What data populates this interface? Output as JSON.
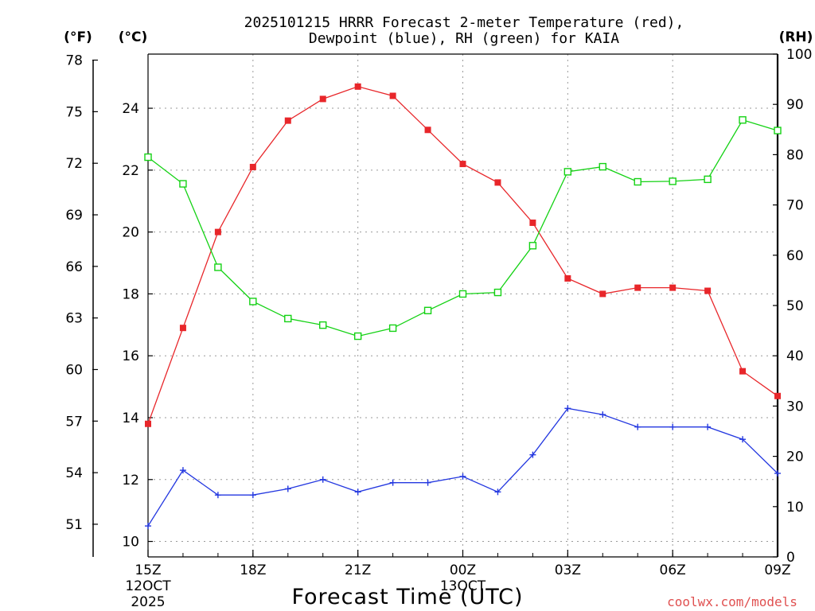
{
  "chart_data": {
    "type": "line",
    "title_line1": "2025101215 HRRR Forecast 2-meter Temperature (red),",
    "title_line2": "Dewpoint (blue), RH (green) for KAIA",
    "xlabel": "Forecast Time (UTC)",
    "watermark": "coolwx.com/models",
    "units": {
      "fahrenheit": "(°F)",
      "celsius": "(°C)",
      "rh": "(RH)"
    },
    "x_hours": [
      0,
      1,
      2,
      3,
      4,
      5,
      6,
      7,
      8,
      9,
      10,
      11,
      12,
      13,
      14,
      15,
      16,
      17,
      18
    ],
    "x_ticks": [
      {
        "hour": 0,
        "label": "15Z",
        "sub1": "12OCT",
        "sub2": "2025"
      },
      {
        "hour": 3,
        "label": "18Z",
        "sub1": "",
        "sub2": ""
      },
      {
        "hour": 6,
        "label": "21Z",
        "sub1": "",
        "sub2": ""
      },
      {
        "hour": 9,
        "label": "00Z",
        "sub1": "13OCT",
        "sub2": ""
      },
      {
        "hour": 12,
        "label": "03Z",
        "sub1": "",
        "sub2": ""
      },
      {
        "hour": 15,
        "label": "06Z",
        "sub1": "",
        "sub2": ""
      },
      {
        "hour": 18,
        "label": "09Z",
        "sub1": "",
        "sub2": ""
      }
    ],
    "celsius_axis": {
      "min": 9.5,
      "max": 25.75,
      "ticks": [
        10,
        12,
        14,
        16,
        18,
        20,
        22,
        24
      ]
    },
    "fahrenheit_ticks": [
      51,
      54,
      57,
      60,
      63,
      66,
      69,
      72,
      75,
      78
    ],
    "rh_axis": {
      "min": 0,
      "max": 100,
      "ticks": [
        0,
        10,
        20,
        30,
        40,
        50,
        60,
        70,
        80,
        90,
        100
      ]
    },
    "series": [
      {
        "name": "Temperature",
        "unit": "C",
        "color": "#e8262a",
        "marker": "filled-square",
        "values": [
          13.8,
          16.9,
          20.0,
          22.1,
          23.6,
          24.3,
          24.7,
          24.4,
          23.3,
          22.2,
          21.6,
          20.3,
          18.5,
          18.0,
          18.2,
          18.2,
          18.1,
          15.5,
          14.7
        ]
      },
      {
        "name": "Dewpoint",
        "unit": "C",
        "color": "#2438e0",
        "marker": "plus",
        "values": [
          10.5,
          12.3,
          11.5,
          11.5,
          11.7,
          12.0,
          11.6,
          11.9,
          11.9,
          12.1,
          11.6,
          12.8,
          14.3,
          14.1,
          13.7,
          13.7,
          13.7,
          13.3,
          12.2
        ]
      },
      {
        "name": "RH",
        "unit": "%",
        "color": "#14d214",
        "marker": "open-square",
        "values": [
          79.5,
          74.2,
          57.6,
          50.8,
          47.4,
          46.1,
          43.9,
          45.5,
          49.0,
          52.3,
          52.6,
          61.9,
          76.6,
          77.6,
          74.6,
          74.7,
          75.1,
          86.9,
          84.8
        ]
      }
    ]
  }
}
